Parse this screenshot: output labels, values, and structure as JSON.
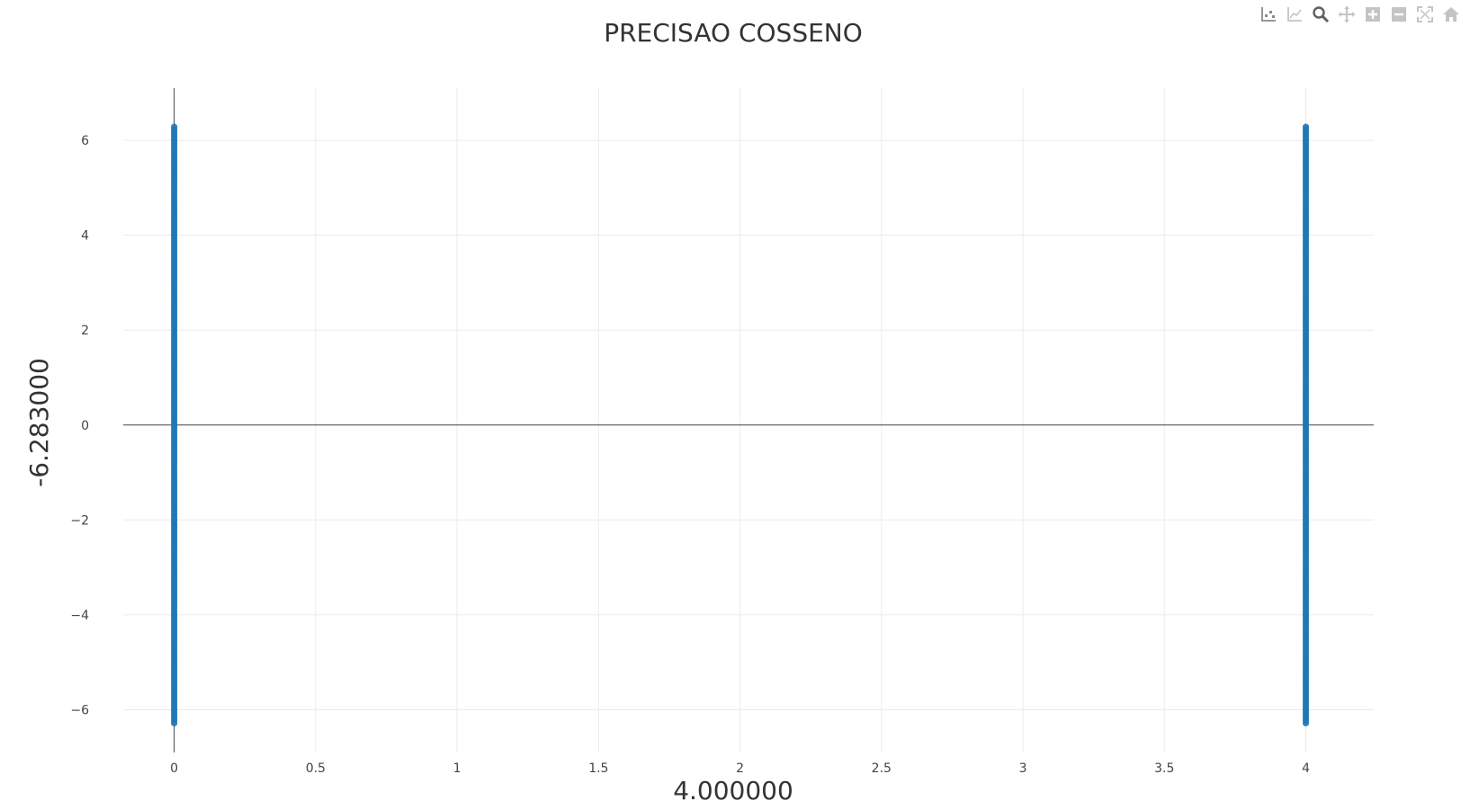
{
  "chart_data": {
    "type": "scatter",
    "title": "PRECISAO COSSENO",
    "xlabel": "4.000000",
    "ylabel": "-6.283000",
    "xlim": [
      -0.18,
      4.24
    ],
    "ylim": [
      -6.9,
      7.1
    ],
    "x_ticks": [
      0,
      0.5,
      1,
      1.5,
      2,
      2.5,
      3,
      3.5,
      4
    ],
    "x_tick_labels": [
      "0",
      "0.5",
      "1",
      "1.5",
      "2",
      "2.5",
      "3",
      "3.5",
      "4"
    ],
    "y_ticks": [
      -6,
      -4,
      -2,
      0,
      2,
      4,
      6
    ],
    "y_tick_labels": [
      "−6",
      "−4",
      "−2",
      "0",
      "2",
      "4",
      "6"
    ],
    "grid": true,
    "marker_color": "#1f77b4",
    "series": [
      {
        "x_values": [
          0,
          4
        ],
        "y_range": [
          -6.283,
          6.283
        ]
      }
    ]
  },
  "modebar": {
    "icons": [
      "show-closest-data-icon",
      "compare-data-icon",
      "zoom-icon",
      "pan-icon",
      "zoom-in-icon",
      "zoom-out-icon",
      "autoscale-icon",
      "reset-axes-icon"
    ]
  }
}
